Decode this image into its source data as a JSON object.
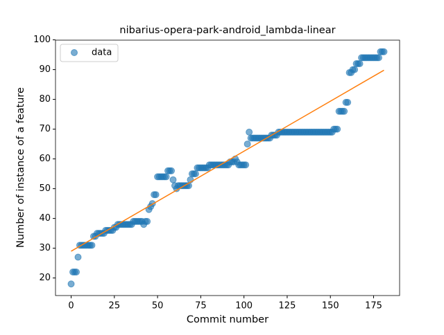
{
  "chart_data": {
    "type": "scatter",
    "title": "nibarius-opera-park-android_lambda-linear",
    "xlabel": "Commit number",
    "ylabel": "Number of instance of a feature",
    "xlim": [
      -9.05,
      190.05
    ],
    "ylim": [
      14.1,
      99.9
    ],
    "xticks": [
      0,
      25,
      50,
      75,
      100,
      125,
      150,
      175
    ],
    "yticks": [
      20,
      30,
      40,
      50,
      60,
      70,
      80,
      90,
      100
    ],
    "grid": false,
    "legend": "upper left",
    "series": [
      {
        "name": "data",
        "color": "#1f77b4",
        "x": [
          0,
          1,
          2,
          3,
          4,
          5,
          6,
          7,
          8,
          9,
          10,
          11,
          12,
          13,
          14,
          15,
          16,
          17,
          18,
          19,
          20,
          21,
          22,
          23,
          24,
          25,
          26,
          27,
          28,
          29,
          30,
          31,
          32,
          33,
          34,
          35,
          36,
          37,
          38,
          39,
          40,
          41,
          42,
          43,
          44,
          45,
          46,
          47,
          48,
          49,
          50,
          51,
          52,
          53,
          54,
          55,
          56,
          57,
          58,
          59,
          60,
          61,
          62,
          63,
          64,
          65,
          66,
          67,
          68,
          69,
          70,
          71,
          72,
          73,
          74,
          75,
          76,
          77,
          78,
          79,
          80,
          81,
          82,
          83,
          84,
          85,
          86,
          87,
          88,
          89,
          90,
          91,
          92,
          93,
          94,
          95,
          96,
          97,
          98,
          99,
          100,
          101,
          102,
          103,
          104,
          105,
          106,
          107,
          108,
          109,
          110,
          111,
          112,
          113,
          114,
          115,
          116,
          117,
          118,
          119,
          120,
          121,
          122,
          123,
          124,
          125,
          126,
          127,
          128,
          129,
          130,
          131,
          132,
          133,
          134,
          135,
          136,
          137,
          138,
          139,
          140,
          141,
          142,
          143,
          144,
          145,
          146,
          147,
          148,
          149,
          150,
          151,
          152,
          153,
          154,
          155,
          156,
          157,
          158,
          159,
          160,
          161,
          162,
          163,
          164,
          165,
          166,
          167,
          168,
          169,
          170,
          171,
          172,
          173,
          174,
          175,
          176,
          177,
          178,
          179,
          180,
          181
        ],
        "values": [
          18,
          22,
          22,
          22,
          27,
          31,
          31,
          31,
          31,
          31,
          31,
          31,
          31,
          34,
          34,
          35,
          35,
          35,
          35,
          35,
          36,
          36,
          36,
          36,
          36,
          37,
          37,
          38,
          38,
          38,
          38,
          38,
          38,
          38,
          38,
          38,
          39,
          39,
          39,
          39,
          39,
          39,
          38,
          39,
          39,
          43,
          44,
          45,
          48,
          48,
          54,
          54,
          54,
          54,
          54,
          54,
          56,
          56,
          56,
          53,
          51,
          50,
          51,
          51,
          51,
          51,
          51,
          51,
          51,
          53,
          55,
          55,
          55,
          57,
          57,
          57,
          57,
          57,
          57,
          57,
          58,
          58,
          58,
          58,
          58,
          58,
          58,
          58,
          58,
          58,
          58,
          58,
          59,
          59,
          59,
          60,
          59,
          58,
          58,
          58,
          58,
          58,
          65,
          69,
          67,
          67,
          67,
          67,
          67,
          67,
          67,
          67,
          67,
          67,
          67,
          67,
          68,
          68,
          68,
          68,
          69,
          69,
          69,
          69,
          69,
          69,
          69,
          69,
          69,
          69,
          69,
          69,
          69,
          69,
          69,
          69,
          69,
          69,
          69,
          69,
          69,
          69,
          69,
          69,
          69,
          69,
          69,
          69,
          69,
          69,
          69,
          69,
          70,
          70,
          70,
          76,
          76,
          76,
          76,
          79,
          79,
          89,
          89,
          90,
          90,
          92,
          92,
          92,
          94,
          94,
          94,
          94,
          94,
          94,
          94,
          94,
          94,
          94,
          94,
          96,
          96,
          96
        ]
      }
    ],
    "fit": {
      "color": "#ff7f0e",
      "x": [
        0,
        181
      ],
      "values": [
        29,
        89.8
      ]
    }
  }
}
